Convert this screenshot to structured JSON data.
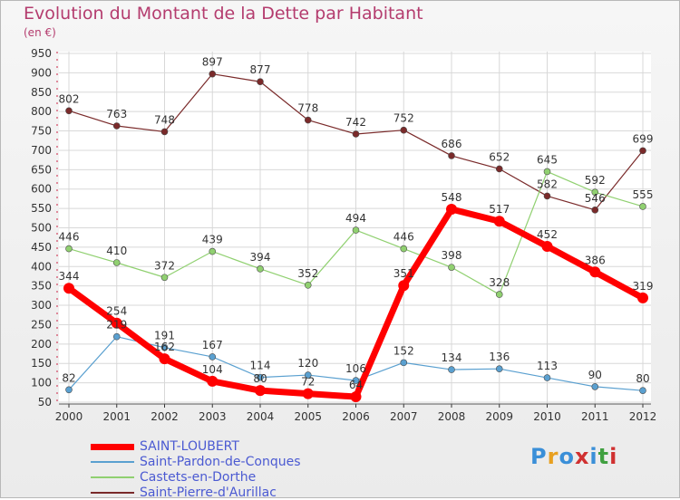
{
  "title": "Evolution du Montant de la Dette par Habitant",
  "subtitle": "(en €)",
  "logo": {
    "text": "Proxiti",
    "colors": [
      "#3a8fd8",
      "#e8a020",
      "#3a8fd8",
      "#d03030",
      "#3a8fd8",
      "#40a040",
      "#d03030"
    ]
  },
  "chart_data": {
    "type": "line",
    "title": "Evolution du Montant de la Dette par Habitant",
    "subtitle": "(en €)",
    "x": [
      "2000",
      "2001",
      "2002",
      "2003",
      "2004",
      "2005",
      "2006",
      "2007",
      "2008",
      "2009",
      "2010",
      "2011",
      "2012"
    ],
    "ylim": [
      50,
      950
    ],
    "yticks": [
      50,
      100,
      150,
      200,
      250,
      300,
      350,
      400,
      450,
      500,
      550,
      600,
      650,
      700,
      750,
      800,
      850,
      900,
      950
    ],
    "grid": true,
    "legend_position": "bottom-left",
    "series": [
      {
        "name": "SAINT-LOUBERT",
        "color": "#ff0000",
        "width": 7,
        "marker": 6,
        "values": [
          344,
          254,
          162,
          104,
          80,
          72,
          64,
          351,
          548,
          517,
          452,
          386,
          319
        ],
        "labels": [
          "344",
          "254",
          "162",
          "104",
          "80",
          "72",
          "64",
          "351",
          "548",
          "517",
          "452",
          "386",
          "319"
        ]
      },
      {
        "name": "Saint-Pardon-de-Conques",
        "color": "#5aa0d0",
        "width": 1.2,
        "marker": 3.5,
        "values": [
          82,
          219,
          191,
          167,
          114,
          120,
          106,
          152,
          134,
          136,
          113,
          90,
          80
        ],
        "labels": [
          "82",
          "219",
          "191",
          "167",
          "114",
          "120",
          "106",
          "152",
          "134",
          "136",
          "113",
          "90",
          "80"
        ]
      },
      {
        "name": "Castets-en-Dorthe",
        "color": "#90d070",
        "width": 1.2,
        "marker": 3.5,
        "values": [
          446,
          410,
          372,
          439,
          394,
          352,
          494,
          446,
          398,
          328,
          645,
          592,
          555
        ],
        "labels": [
          "446",
          "410",
          "372",
          "439",
          "394",
          "352",
          "494",
          "446",
          "398",
          "328",
          "645",
          "592",
          "555"
        ]
      },
      {
        "name": "Saint-Pierre-d'Aurillac",
        "color": "#7a2a2a",
        "width": 1.2,
        "marker": 3.5,
        "values": [
          802,
          763,
          748,
          897,
          877,
          778,
          742,
          752,
          686,
          652,
          582,
          546,
          699
        ],
        "labels": [
          "802",
          "763",
          "748",
          "897",
          "877",
          "778",
          "742",
          "752",
          "686",
          "652",
          "582",
          "546",
          "699"
        ]
      }
    ]
  }
}
